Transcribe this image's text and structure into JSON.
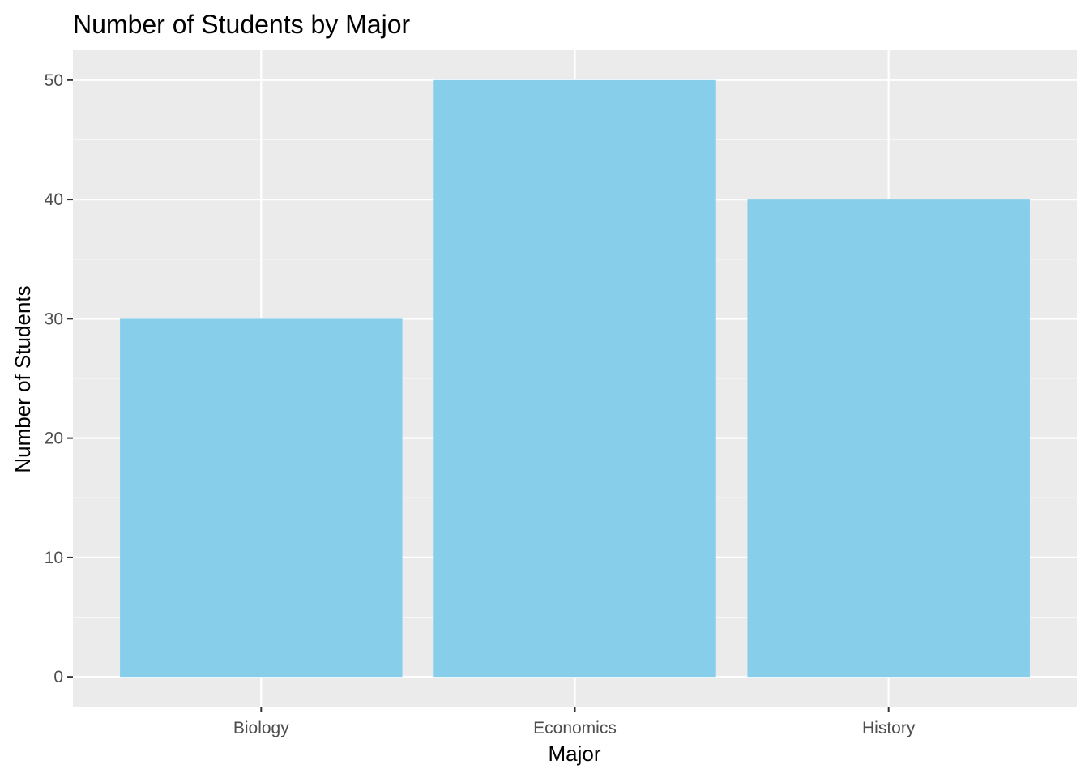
{
  "chart_data": {
    "type": "bar",
    "title": "Number of Students by Major",
    "xlabel": "Major",
    "ylabel": "Number of Students",
    "categories": [
      "Biology",
      "Economics",
      "History"
    ],
    "values": [
      30,
      50,
      40
    ],
    "ylim": [
      -2.5,
      52.5
    ],
    "yticks": [
      0,
      10,
      20,
      30,
      40,
      50
    ],
    "grid": true,
    "legend": "none",
    "colors": {
      "bar": "#87CEEB",
      "panel_background": "#EBEBEB",
      "grid_major": "#FFFFFF",
      "grid_minor": "#F7F7F7",
      "tick_text": "#4D4D4D",
      "axis_ticks": "#333333"
    }
  }
}
